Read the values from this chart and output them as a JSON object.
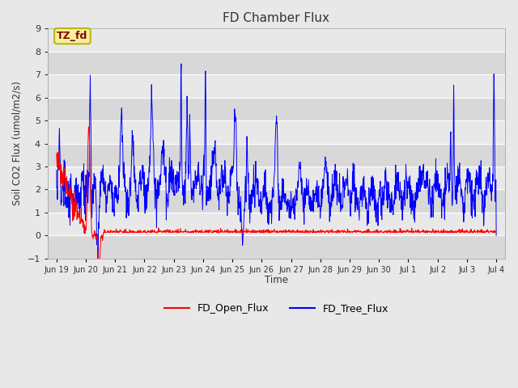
{
  "title": "FD Chamber Flux",
  "ylabel": "Soil CO2 Flux (umol/m2/s)",
  "xlabel": "Time",
  "ylim": [
    -1.0,
    9.0
  ],
  "yticks": [
    -1.0,
    0.0,
    1.0,
    2.0,
    3.0,
    4.0,
    5.0,
    6.0,
    7.0,
    8.0,
    9.0
  ],
  "fig_bg_color": "#e8e8e8",
  "plot_bg_color": "#e0e0e0",
  "band_color_light": "#e8e8e8",
  "band_color_dark": "#d8d8d8",
  "annotation_label": "TZ_fd",
  "annotation_facecolor": "#f5f0a0",
  "annotation_edgecolor": "#b8b800",
  "annotation_textcolor": "#8b0000",
  "line1_color": "#ff0000",
  "line1_label": "FD_Open_Flux",
  "line2_color": "#0000ff",
  "line2_label": "FD_Tree_Flux",
  "xtick_labels": [
    "Jun 19",
    "Jun 20",
    "Jun 21",
    "Jun 22",
    "Jun 23",
    "Jun 24",
    "Jun 25",
    "Jun 26",
    "Jun 27",
    "Jun 28",
    "Jun 29",
    "Jun 30",
    "Jul 1",
    "Jul 2",
    "Jul 3",
    "Jul 4"
  ],
  "n_points": 1500
}
